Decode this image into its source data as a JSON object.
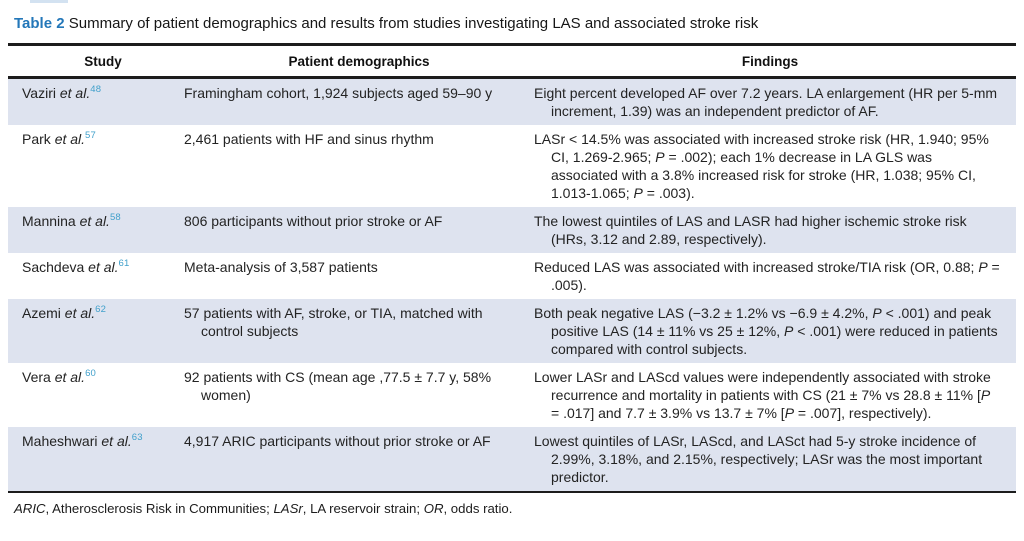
{
  "caption": {
    "label": "Table 2",
    "text": "Summary of patient demographics and results from studies investigating LAS and associated stroke risk"
  },
  "columns": [
    "Study",
    "Patient demographics",
    "Findings"
  ],
  "rows": [
    {
      "study": "Vaziri *et al.*",
      "ref": "48",
      "demographics": "Framingham cohort, 1,924 subjects aged 59–90 y",
      "findings": "Eight percent developed AF over 7.2 years. LA enlargement (HR per 5-mm increment, 1.39) was an independent predictor of AF.",
      "shaded": true
    },
    {
      "study": "Park *et al.*",
      "ref": "57",
      "demographics": "2,461 patients with HF and sinus rhythm",
      "findings": "LASr < 14.5% was associated with increased stroke risk (HR, 1.940; 95% CI, 1.269-2.965; *P* = .002); each 1% decrease in LA GLS was associated with a 3.8% increased risk for stroke (HR, 1.038; 95% CI, 1.013-1.065; *P* = .003).",
      "shaded": false
    },
    {
      "study": "Mannina *et al.*",
      "ref": "58",
      "demographics": "806 participants without prior stroke or AF",
      "findings": "The lowest quintiles of LAS and LASR had higher ischemic stroke risk (HRs, 3.12 and 2.89, respectively).",
      "shaded": true
    },
    {
      "study": "Sachdeva *et al.*",
      "ref": "61",
      "demographics": "Meta-analysis of 3,587 patients",
      "findings": "Reduced LAS was associated with increased stroke/TIA risk (OR, 0.88; *P* = .005).",
      "shaded": false
    },
    {
      "study": "Azemi *et al.*",
      "ref": "62",
      "demographics": "57 patients with AF, stroke, or TIA, matched with control subjects",
      "findings": "Both peak negative LAS (−3.2 ± 1.2% vs −6.9 ± 4.2%, *P* < .001) and peak positive LAS (14 ± 11% vs 25 ± 12%, *P* < .001) were reduced in patients compared with control subjects.",
      "shaded": true
    },
    {
      "study": "Vera *et al.*",
      "ref": "60",
      "demographics": "92 patients with CS (mean age ,77.5 ± 7.7 y, 58% women)",
      "findings": "Lower LASr and LAScd values were independently associated with stroke recurrence and mortality in patients with CS (21 ± 7% vs 28.8 ± 11% [*P* = .017] and 7.7 ± 3.9% vs 13.7 ± 7% [*P* = .007], respectively).",
      "shaded": false
    },
    {
      "study": "Maheshwari *et al.*",
      "ref": "63",
      "demographics": "4,917 ARIC participants without prior stroke or AF",
      "findings": "Lowest quintiles of LASr, LAScd, and LASct had 5-y stroke incidence of 2.99%, 3.18%, and 2.15%, respectively; LASr was the most important predictor.",
      "shaded": true
    }
  ],
  "footnote": "*ARIC*, Atherosclerosis Risk in Communities; *LASr*, LA reservoir strain; *OR*, odds ratio.",
  "colors": {
    "caption_label_blue": "#2377b9",
    "reference_blue": "#41a0cb",
    "row_shade": "#dee3ef",
    "rule_black": "#1c1c1c"
  }
}
